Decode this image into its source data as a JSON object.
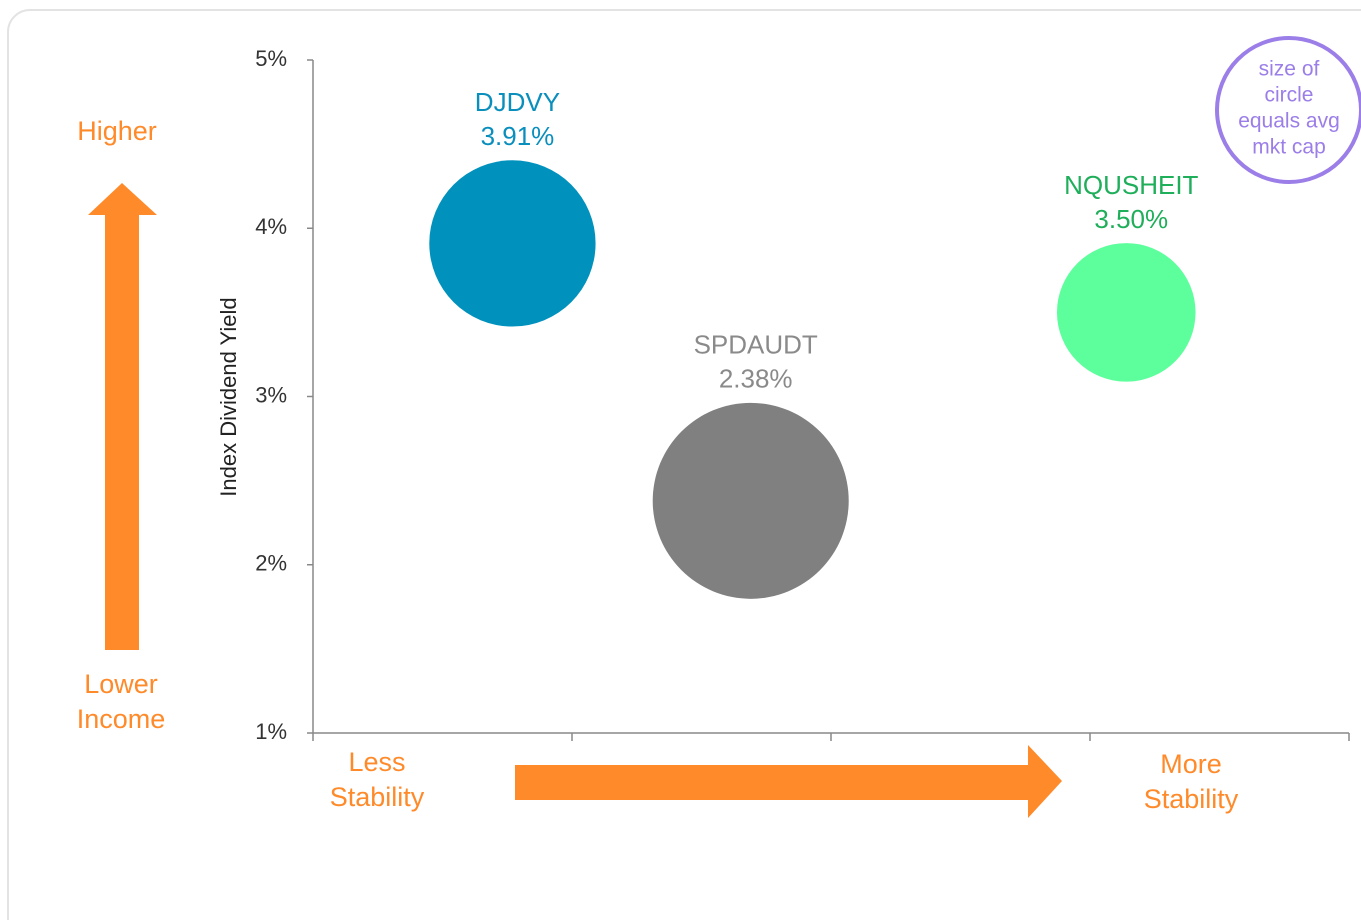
{
  "chart_data": {
    "type": "bubble",
    "y_label": "Index Dividend Yield",
    "ylim": [
      1,
      5
    ],
    "yticks": [
      {
        "value": 1,
        "label": "1%"
      },
      {
        "value": 2,
        "label": "2%"
      },
      {
        "value": 3,
        "label": "3%"
      },
      {
        "value": 4,
        "label": "4%"
      },
      {
        "value": 5,
        "label": "5%"
      }
    ],
    "xlim": [
      0,
      4
    ],
    "xticks": [
      0,
      1,
      2,
      3,
      4
    ],
    "series": [
      {
        "name": "DJDVY",
        "color": "#0091bd",
        "label_color": "#0a8fbd",
        "x": [
          0.77
        ],
        "values": [
          3.91
        ],
        "value_labels": [
          "3.91%"
        ],
        "sizes": [
          72
        ]
      },
      {
        "name": "SPDAUDT",
        "color": "#808080",
        "label_color": "#8a8a8a",
        "x": [
          1.69
        ],
        "values": [
          2.38
        ],
        "value_labels": [
          "2.38%"
        ],
        "sizes": [
          100
        ]
      },
      {
        "name": "NQUSHEIT",
        "color": "#5cff9b",
        "label_color": "#1fae5a",
        "x": [
          3.14
        ],
        "values": [
          3.5
        ],
        "value_labels": [
          "3.50%"
        ],
        "sizes": [
          50
        ]
      }
    ],
    "annotations": {
      "higher": [
        "Higher"
      ],
      "lower_income": [
        "Lower",
        "Income"
      ],
      "less_stability": [
        "Less",
        "Stability"
      ],
      "more_stability": [
        "More",
        "Stability"
      ],
      "size_note": [
        "size of",
        "circle",
        "equals avg",
        "mkt cap"
      ]
    }
  }
}
